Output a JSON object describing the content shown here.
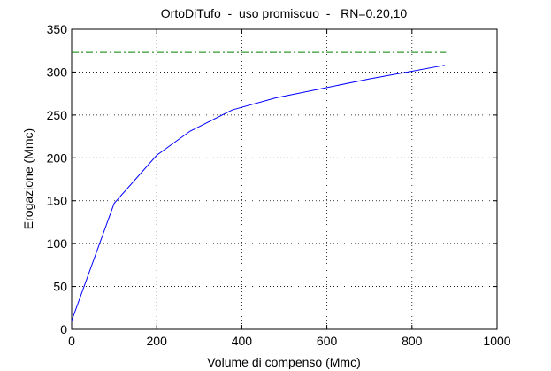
{
  "chart_data": {
    "type": "line",
    "title": "OrtoDiTufo  -  uso promiscuo  -   RN=0.20,10",
    "x_label": "Volume di compenso (Mmc)",
    "y_label": "Erogazione (Mmc)",
    "xlim": [
      0,
      1000
    ],
    "xticks": [
      0,
      200,
      400,
      600,
      800,
      1000
    ],
    "ylim": [
      0,
      350
    ],
    "yticks": [
      0,
      50,
      100,
      150,
      200,
      250,
      300,
      350
    ],
    "grid": true,
    "series": [
      {
        "color": "#0000ff",
        "dash": "solid",
        "x": [
          0,
          100,
          200,
          278,
          378,
          480,
          600,
          700,
          800,
          877
        ],
        "values": [
          10,
          147,
          203,
          231,
          256,
          270,
          282,
          292,
          301,
          308
        ]
      },
      {
        "color": "#008000",
        "dash": "dashdot",
        "x": [
          0,
          880
        ],
        "values": [
          323,
          323
        ]
      }
    ]
  }
}
